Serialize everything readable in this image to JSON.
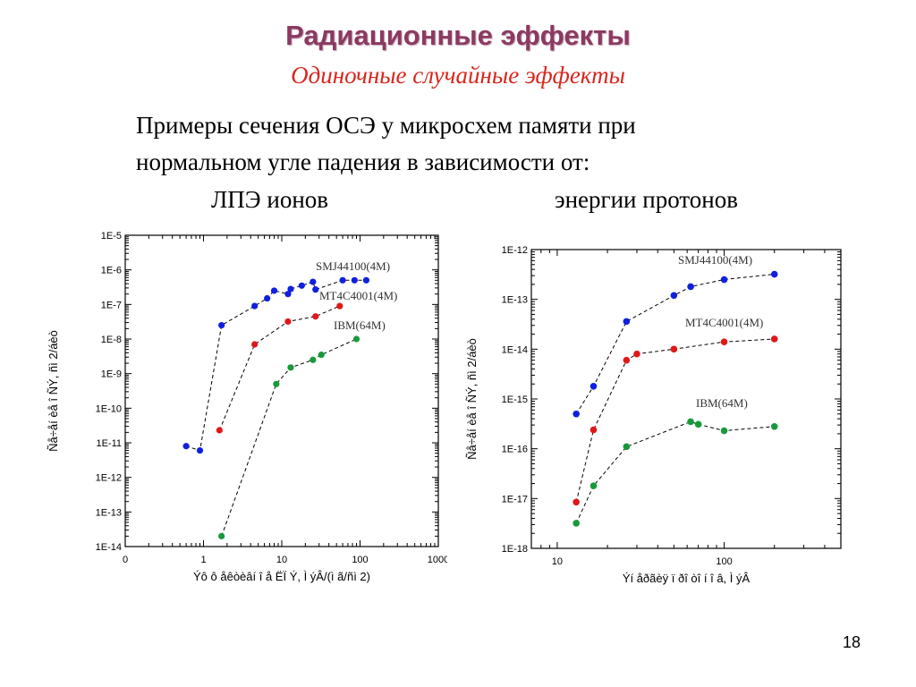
{
  "slide": {
    "title": "Радиационные эффекты",
    "subtitle": "Одиночные случайные эффекты",
    "body_lines": [
      "Примеры сечения ОСЭ у микросхем памяти при",
      "нормальном угле падения в зависимости от:"
    ],
    "chart_titles": [
      "ЛПЭ ионов",
      "энергии протонов"
    ],
    "page_number": "18",
    "colors": {
      "title": "#8b3a62",
      "subtitle": "#d9261c",
      "blue": "#1020e0",
      "red": "#e01818",
      "green": "#179a3a"
    }
  },
  "chart_data": [
    {
      "type": "scatter",
      "x_scale": "log",
      "y_scale": "log",
      "x_tick_labels": [
        "0",
        "1",
        "10",
        "100",
        "1000"
      ],
      "y_tick_labels": [
        "1E-5",
        "1E-6",
        "1E-7",
        "1E-8",
        "1E-9",
        "1E-10",
        "1E-11",
        "1E-12",
        "1E-13",
        "1E-14"
      ],
      "xlim": [
        0.1,
        1000
      ],
      "ylim": [
        1e-14,
        1e-05
      ],
      "xlabel": "Ýô ô åêòèâí î å ËÏ Ý, Ì ýÂ/(ì ã/ñì 2)",
      "ylabel": "Ñå÷åí èå î ÑÝ, ñì 2/áèò",
      "series": [
        {
          "name": "SMJ44100(4M)",
          "color": "#1020e0",
          "connected": true,
          "points": [
            [
              0.6,
              8e-12
            ],
            [
              0.9,
              6e-12
            ],
            [
              1.7,
              2.5e-08
            ],
            [
              4.5,
              9e-08
            ],
            [
              6.5,
              1.5e-07
            ],
            [
              8,
              2.5e-07
            ],
            [
              12,
              2e-07
            ],
            [
              13,
              2.8e-07
            ],
            [
              18,
              3.5e-07
            ],
            [
              25,
              4.5e-07
            ],
            [
              27,
              2.7e-07
            ],
            [
              60,
              5e-07
            ],
            [
              85,
              5e-07
            ],
            [
              120,
              5e-07
            ]
          ]
        },
        {
          "name": "MT4C4001(4M)",
          "color": "#e01818",
          "connected": true,
          "points": [
            [
              1.6,
              2.3e-11
            ],
            [
              4.5,
              7e-09
            ],
            [
              12,
              3.2e-08
            ],
            [
              27,
              4.5e-08
            ],
            [
              55,
              9e-08
            ]
          ]
        },
        {
          "name": "IBM(64M)",
          "color": "#179a3a",
          "connected": true,
          "points": [
            [
              1.7,
              2e-14
            ],
            [
              8.5,
              5e-10
            ],
            [
              13,
              1.5e-09
            ],
            [
              25,
              2.5e-09
            ],
            [
              32,
              3.5e-09
            ],
            [
              90,
              1e-08
            ]
          ]
        }
      ]
    },
    {
      "type": "scatter",
      "x_scale": "log",
      "y_scale": "log",
      "x_tick_labels": [
        "10",
        "100"
      ],
      "y_tick_labels": [
        "1E-12",
        "1E-13",
        "1E-14",
        "1E-15",
        "1E-16",
        "1E-17",
        "1E-18"
      ],
      "xlim": [
        7,
        500
      ],
      "ylim": [
        1e-18,
        1e-12
      ],
      "xlabel": "Ýí åðãèÿ ï ðî òî í î â, Ì ýÂ",
      "ylabel": "Ñå÷åí èå î ÑÝ, ñì 2/áèò",
      "series": [
        {
          "name": "SMJ44100(4M)",
          "color": "#1020e0",
          "connected": true,
          "points": [
            [
              13,
              5e-16
            ],
            [
              16.5,
              1.8e-15
            ],
            [
              26,
              3.6e-14
            ],
            [
              50,
              1.2e-13
            ],
            [
              63,
              1.8e-13
            ],
            [
              100,
              2.5e-13
            ],
            [
              200,
              3.2e-13
            ]
          ]
        },
        {
          "name": "MT4C4001(4M)",
          "color": "#e01818",
          "connected": true,
          "points": [
            [
              13,
              8.5e-18
            ],
            [
              16.5,
              2.4e-16
            ],
            [
              26,
              6e-15
            ],
            [
              30,
              8e-15
            ],
            [
              50,
              1e-14
            ],
            [
              100,
              1.4e-14
            ],
            [
              200,
              1.6e-14
            ]
          ]
        },
        {
          "name": "IBM(64M)",
          "color": "#179a3a",
          "connected": true,
          "points": [
            [
              13,
              3.2e-18
            ],
            [
              16.5,
              1.8e-17
            ],
            [
              26,
              1.1e-16
            ],
            [
              63,
              3.5e-16
            ],
            [
              70,
              3.1e-16
            ],
            [
              100,
              2.3e-16
            ],
            [
              200,
              2.8e-16
            ]
          ]
        }
      ]
    }
  ]
}
